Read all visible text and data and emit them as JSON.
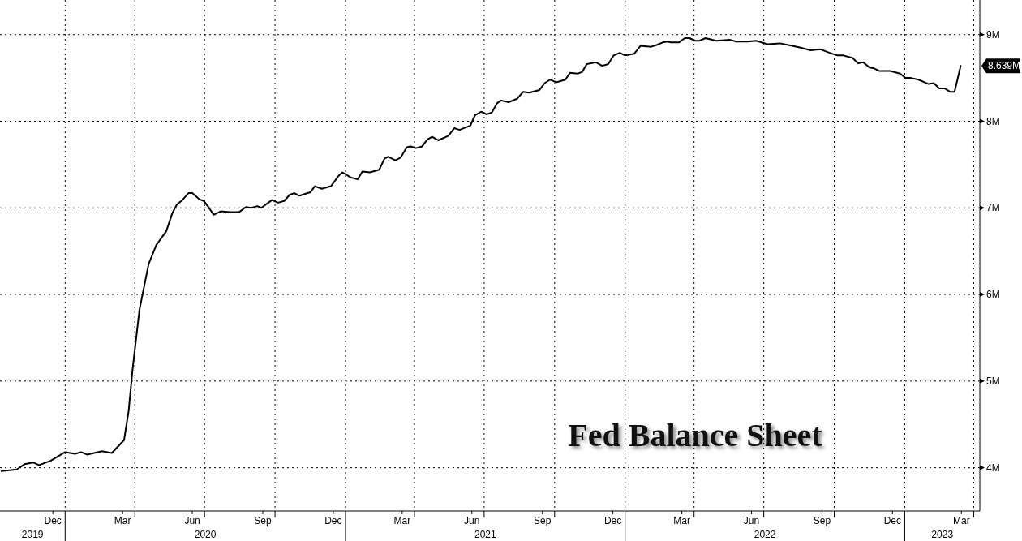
{
  "chart_data": {
    "type": "line",
    "title": "Fed Balance Sheet",
    "series": [
      {
        "color": "#000000",
        "x": [
          "2019-10-10",
          "2019-10-30",
          "2019-11-09",
          "2019-11-20",
          "2019-11-28",
          "2019-12-13",
          "2020-01-01",
          "2020-01-14",
          "2020-01-22",
          "2020-01-30",
          "2020-02-18",
          "2020-03-02",
          "2020-03-18",
          "2020-03-24",
          "2020-03-29",
          "2020-04-07",
          "2020-04-19",
          "2020-04-29",
          "2020-05-12",
          "2020-05-20",
          "2020-05-26",
          "2020-06-02",
          "2020-06-10",
          "2020-06-15",
          "2020-06-24",
          "2020-06-30",
          "2020-07-06",
          "2020-07-13",
          "2020-07-22",
          "2020-08-03",
          "2020-08-15",
          "2020-08-24",
          "2020-08-31",
          "2020-09-08",
          "2020-09-13",
          "2020-09-27",
          "2020-10-05",
          "2020-10-13",
          "2020-10-20",
          "2020-10-26",
          "2020-11-02",
          "2020-11-16",
          "2020-11-22",
          "2020-12-01",
          "2020-12-13",
          "2020-12-23",
          "2020-12-28",
          "2021-01-08",
          "2021-01-17",
          "2021-01-23",
          "2021-02-02",
          "2021-02-14",
          "2021-02-21",
          "2021-02-26",
          "2021-03-07",
          "2021-03-14",
          "2021-03-22",
          "2021-03-27",
          "2021-04-03",
          "2021-04-11",
          "2021-04-18",
          "2021-04-24",
          "2021-05-02",
          "2021-05-15",
          "2021-05-23",
          "2021-05-30",
          "2021-06-13",
          "2021-06-19",
          "2021-06-27",
          "2021-07-04",
          "2021-07-11",
          "2021-07-18",
          "2021-07-23",
          "2021-08-02",
          "2021-08-13",
          "2021-08-21",
          "2021-08-29",
          "2021-09-11",
          "2021-09-18",
          "2021-09-25",
          "2021-10-03",
          "2021-10-15",
          "2021-10-21",
          "2021-10-31",
          "2021-11-06",
          "2021-11-12",
          "2021-11-24",
          "2021-12-02",
          "2021-12-10",
          "2021-12-17",
          "2021-12-25",
          "2022-01-01",
          "2022-01-13",
          "2022-01-21",
          "2022-02-04",
          "2022-02-11",
          "2022-02-19",
          "2022-02-25",
          "2022-03-02",
          "2022-03-12",
          "2022-03-20",
          "2022-03-26",
          "2022-04-02",
          "2022-04-08",
          "2022-04-16",
          "2022-04-30",
          "2022-05-18",
          "2022-05-26",
          "2022-06-10",
          "2022-06-21",
          "2022-07-06",
          "2022-07-22",
          "2022-08-07",
          "2022-08-18",
          "2022-08-31",
          "2022-09-13",
          "2022-09-25",
          "2022-10-05",
          "2022-10-13",
          "2022-10-25",
          "2022-11-01",
          "2022-11-08",
          "2022-11-16",
          "2022-11-22",
          "2022-11-29",
          "2022-12-13",
          "2022-12-26",
          "2023-01-02",
          "2023-01-09",
          "2023-01-19",
          "2023-02-01",
          "2023-02-08",
          "2023-02-15",
          "2023-02-22",
          "2023-03-01",
          "2023-03-07",
          "2023-03-15"
        ],
        "values": [
          3.96,
          3.98,
          4.04,
          4.06,
          4.03,
          4.08,
          4.18,
          4.16,
          4.18,
          4.15,
          4.19,
          4.17,
          4.32,
          4.66,
          5.13,
          5.82,
          6.35,
          6.57,
          6.73,
          6.94,
          7.04,
          7.09,
          7.17,
          7.17,
          7.1,
          7.08,
          7.01,
          6.92,
          6.96,
          6.95,
          6.95,
          7.01,
          7.0,
          7.02,
          7.0,
          7.09,
          7.06,
          7.08,
          7.15,
          7.17,
          7.14,
          7.18,
          7.25,
          7.22,
          7.25,
          7.37,
          7.41,
          7.35,
          7.33,
          7.42,
          7.41,
          7.44,
          7.57,
          7.59,
          7.55,
          7.58,
          7.7,
          7.71,
          7.69,
          7.71,
          7.79,
          7.82,
          7.78,
          7.83,
          7.92,
          7.9,
          7.95,
          8.07,
          8.11,
          8.08,
          8.1,
          8.21,
          8.24,
          8.22,
          8.26,
          8.34,
          8.33,
          8.36,
          8.44,
          8.48,
          8.45,
          8.48,
          8.56,
          8.55,
          8.57,
          8.66,
          8.68,
          8.64,
          8.66,
          8.76,
          8.79,
          8.76,
          8.78,
          8.87,
          8.86,
          8.88,
          8.91,
          8.92,
          8.91,
          8.91,
          8.96,
          8.96,
          8.93,
          8.93,
          8.96,
          8.93,
          8.94,
          8.92,
          8.92,
          8.93,
          8.89,
          8.9,
          8.87,
          8.85,
          8.82,
          8.83,
          8.79,
          8.76,
          8.76,
          8.73,
          8.67,
          8.68,
          8.62,
          8.61,
          8.58,
          8.58,
          8.55,
          8.5,
          8.5,
          8.48,
          8.43,
          8.44,
          8.38,
          8.38,
          8.34,
          8.34,
          8.639
        ]
      }
    ],
    "xlim": [
      "2019-10-08",
      "2023-04-09"
    ],
    "xticks": [
      {
        "value": "2019-12-16",
        "label": "Dec"
      },
      {
        "value": "2020-03-16",
        "label": "Mar"
      },
      {
        "value": "2020-06-15",
        "label": "Jun"
      },
      {
        "value": "2020-09-15",
        "label": "Sep"
      },
      {
        "value": "2020-12-16",
        "label": "Dec"
      },
      {
        "value": "2021-03-16",
        "label": "Mar"
      },
      {
        "value": "2021-06-15",
        "label": "Jun"
      },
      {
        "value": "2021-09-15",
        "label": "Sep"
      },
      {
        "value": "2021-12-16",
        "label": "Dec"
      },
      {
        "value": "2022-03-16",
        "label": "Mar"
      },
      {
        "value": "2022-06-15",
        "label": "Jun"
      },
      {
        "value": "2022-09-15",
        "label": "Sep"
      },
      {
        "value": "2022-12-16",
        "label": "Dec"
      },
      {
        "value": "2023-03-16",
        "label": "Mar"
      },
      {
        "value": "2020-01-01",
        "label": null
      },
      {
        "value": "2020-04-01",
        "label": null
      },
      {
        "value": "2020-07-01",
        "label": null
      },
      {
        "value": "2020-10-01",
        "label": null
      },
      {
        "value": "2021-01-01",
        "label": null
      },
      {
        "value": "2021-04-01",
        "label": null
      },
      {
        "value": "2021-07-01",
        "label": null
      },
      {
        "value": "2021-10-01",
        "label": null
      },
      {
        "value": "2022-01-01",
        "label": null
      },
      {
        "value": "2022-04-01",
        "label": null
      },
      {
        "value": "2022-07-01",
        "label": null
      },
      {
        "value": "2022-10-01",
        "label": null
      },
      {
        "value": "2023-01-01",
        "label": null
      },
      {
        "value": "2023-04-01",
        "label": null
      }
    ],
    "ylim": [
      3.5,
      9.4
    ],
    "yticks": [
      {
        "value": 4,
        "label": "4M"
      },
      {
        "value": 5,
        "label": "5M"
      },
      {
        "value": 6,
        "label": "6M"
      },
      {
        "value": 7,
        "label": "7M"
      },
      {
        "value": 8,
        "label": "8M"
      },
      {
        "value": 9,
        "label": "9M"
      }
    ],
    "grid": true,
    "tick_labels": "xy",
    "annotations": [
      {
        "text": "8.639M",
        "x": "2023-03-15",
        "y": 8.639
      },
      "2019",
      "2020",
      "2021",
      "2022",
      "2023"
    ]
  }
}
